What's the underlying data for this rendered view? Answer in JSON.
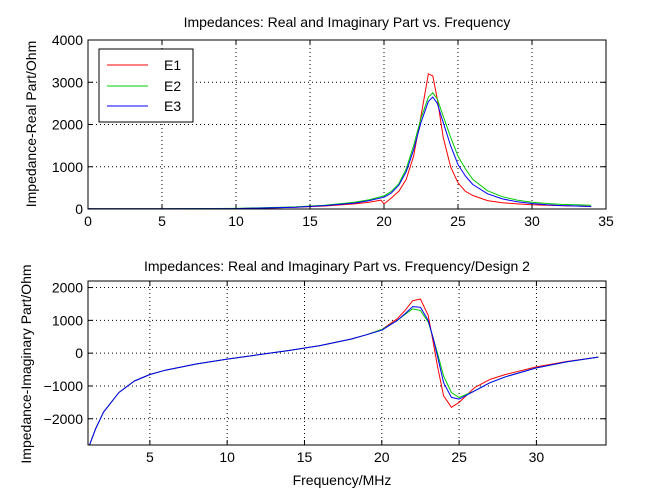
{
  "chart_data": [
    {
      "type": "line",
      "title": "Impedances: Real and Imaginary Part vs. Frequency",
      "xlabel": "",
      "ylabel": "Impedance-Real Part/Ohm",
      "xlim": [
        0,
        35
      ],
      "ylim": [
        0,
        4000
      ],
      "xticks": [
        0,
        5,
        10,
        15,
        20,
        25,
        30,
        35
      ],
      "yticks": [
        0,
        1000,
        2000,
        3000,
        4000
      ],
      "grid": true,
      "legend": "top-left",
      "series": [
        {
          "name": "E1",
          "color": "#ff0000",
          "x": [
            0,
            5,
            10,
            14,
            16,
            18,
            19,
            19.8,
            20,
            20.5,
            21,
            21.5,
            22,
            22.5,
            23,
            23.3,
            23.6,
            24,
            24.5,
            25,
            25.5,
            26,
            27,
            28,
            29,
            30,
            31,
            32,
            33,
            34
          ],
          "y": [
            5,
            5,
            10,
            40,
            70,
            120,
            160,
            210,
            120,
            260,
            420,
            700,
            1250,
            2200,
            3200,
            3150,
            2600,
            1700,
            1000,
            620,
            420,
            320,
            200,
            150,
            120,
            100,
            90,
            80,
            70,
            60
          ]
        },
        {
          "name": "E2",
          "color": "#00cc00",
          "x": [
            0,
            5,
            10,
            14,
            16,
            18,
            19,
            20,
            20.5,
            21,
            21.5,
            22,
            22.5,
            23,
            23.3,
            23.6,
            24,
            24.5,
            25,
            25.5,
            26,
            27,
            28,
            29,
            30,
            31,
            32,
            33,
            34
          ],
          "y": [
            5,
            5,
            15,
            50,
            90,
            160,
            220,
            310,
            420,
            600,
            950,
            1500,
            2150,
            2650,
            2750,
            2600,
            2200,
            1700,
            1250,
            950,
            700,
            430,
            290,
            210,
            160,
            130,
            110,
            100,
            90
          ]
        },
        {
          "name": "E3",
          "color": "#0000ff",
          "x": [
            0,
            5,
            10,
            14,
            16,
            18,
            19,
            20,
            20.5,
            21,
            21.5,
            22,
            22.5,
            23,
            23.3,
            23.6,
            24,
            24.5,
            25,
            25.5,
            26,
            27,
            28,
            29,
            30,
            31,
            32,
            33,
            34
          ],
          "y": [
            5,
            5,
            10,
            40,
            80,
            140,
            200,
            280,
            380,
            560,
            880,
            1400,
            2050,
            2550,
            2650,
            2500,
            2050,
            1500,
            1050,
            780,
            580,
            360,
            240,
            170,
            130,
            100,
            80,
            70,
            60
          ]
        }
      ]
    },
    {
      "type": "line",
      "title": "Impedances: Real and Imaginary Part vs. Frequency/Design 2",
      "xlabel": "Frequency/MHz",
      "ylabel": "Impedance-Imaginary Part/Ohm",
      "xlim": [
        1,
        34.5
      ],
      "ylim": [
        -2800,
        2200
      ],
      "xticks": [
        5,
        10,
        15,
        20,
        25,
        30
      ],
      "yticks": [
        -2000,
        -1000,
        0,
        1000,
        2000
      ],
      "grid": true,
      "series": [
        {
          "name": "E1",
          "color": "#ff0000",
          "x": [
            1.1,
            1.5,
            2,
            3,
            4,
            5,
            6,
            8,
            10,
            12,
            14,
            16,
            18,
            19,
            20,
            21,
            21.5,
            22,
            22.5,
            23,
            23.3,
            23.6,
            24,
            24.5,
            25,
            26,
            27,
            28,
            30,
            32,
            34
          ],
          "y": [
            -2800,
            -2300,
            -1800,
            -1200,
            -850,
            -650,
            -520,
            -330,
            -180,
            -50,
            80,
            230,
            430,
            560,
            720,
            1050,
            1300,
            1600,
            1650,
            1150,
            400,
            -400,
            -1300,
            -1650,
            -1500,
            -1050,
            -800,
            -650,
            -420,
            -250,
            -120
          ]
        },
        {
          "name": "E2",
          "color": "#00cc00",
          "x": [
            1.1,
            1.5,
            2,
            3,
            4,
            5,
            6,
            8,
            10,
            12,
            14,
            16,
            18,
            19,
            20,
            21,
            21.5,
            22,
            22.5,
            23,
            23.3,
            23.6,
            24,
            24.5,
            25,
            26,
            27,
            28,
            30,
            32,
            34
          ],
          "y": [
            -2800,
            -2300,
            -1800,
            -1200,
            -850,
            -650,
            -520,
            -330,
            -180,
            -50,
            80,
            230,
            430,
            560,
            720,
            1000,
            1180,
            1350,
            1300,
            950,
            500,
            0,
            -700,
            -1200,
            -1350,
            -1150,
            -900,
            -720,
            -450,
            -260,
            -120
          ]
        },
        {
          "name": "E3",
          "color": "#0000ff",
          "x": [
            1.1,
            1.5,
            2,
            3,
            4,
            5,
            6,
            8,
            10,
            12,
            14,
            16,
            18,
            19,
            20,
            21,
            21.5,
            22,
            22.5,
            23,
            23.3,
            23.6,
            24,
            24.5,
            25,
            26,
            27,
            28,
            30,
            32,
            34
          ],
          "y": [
            -2800,
            -2300,
            -1800,
            -1200,
            -850,
            -650,
            -520,
            -330,
            -180,
            -50,
            80,
            230,
            430,
            560,
            700,
            1000,
            1200,
            1420,
            1400,
            1000,
            500,
            -100,
            -900,
            -1350,
            -1400,
            -1150,
            -900,
            -720,
            -450,
            -260,
            -120
          ]
        }
      ]
    }
  ]
}
